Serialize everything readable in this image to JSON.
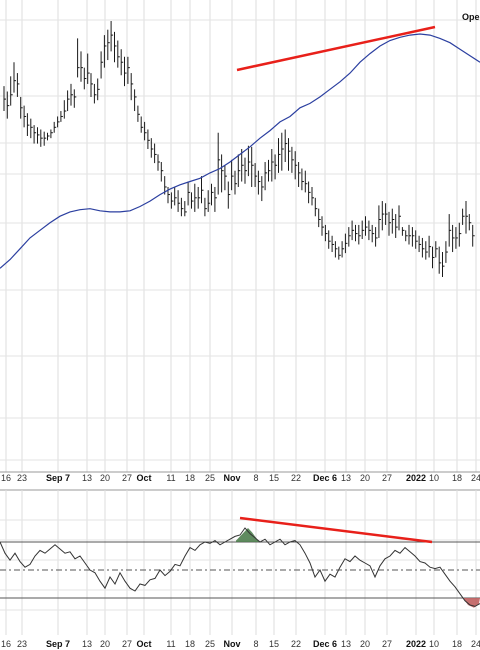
{
  "chart_data": [
    {
      "type": "ohlc-bar",
      "panel": "price",
      "header_text": "Ope",
      "x_tick_labels": [
        "16",
        "23",
        "Sep 7",
        "13",
        "20",
        "27",
        "Oct",
        "11",
        "18",
        "25",
        "Nov",
        "8",
        "15",
        "22",
        "Dec 6",
        "13",
        "20",
        "27",
        "2022",
        "10",
        "18",
        "24"
      ],
      "bold_tick_labels": [
        "Sep 7",
        "Oct",
        "Nov",
        "Dec 6",
        "2022"
      ],
      "grid": true,
      "price_bars": [
        [
          188,
          165,
          176
        ],
        [
          183,
          158,
          170
        ],
        [
          197,
          170,
          180
        ],
        [
          210,
          182,
          193
        ],
        [
          200,
          178,
          190
        ],
        [
          178,
          158,
          168
        ],
        [
          170,
          150,
          160
        ],
        [
          163,
          142,
          152
        ],
        [
          158,
          140,
          150
        ],
        [
          152,
          135,
          145
        ],
        [
          150,
          135,
          143
        ],
        [
          148,
          132,
          140
        ],
        [
          146,
          133,
          140
        ],
        [
          145,
          138,
          142
        ],
        [
          148,
          140,
          145
        ],
        [
          155,
          145,
          150
        ],
        [
          160,
          150,
          155
        ],
        [
          165,
          155,
          160
        ],
        [
          175,
          158,
          165
        ],
        [
          184,
          165,
          176
        ],
        [
          190,
          170,
          180
        ],
        [
          185,
          168,
          178
        ],
        [
          232,
          196,
          205
        ],
        [
          220,
          192,
          205
        ],
        [
          205,
          185,
          195
        ],
        [
          218,
          190,
          200
        ],
        [
          200,
          178,
          190
        ],
        [
          190,
          172,
          180
        ],
        [
          195,
          175,
          185
        ],
        [
          220,
          195,
          210
        ],
        [
          235,
          205,
          225
        ],
        [
          240,
          212,
          228
        ],
        [
          248,
          220,
          235
        ],
        [
          238,
          210,
          225
        ],
        [
          230,
          205,
          215
        ],
        [
          222,
          198,
          210
        ],
        [
          215,
          188,
          200
        ],
        [
          215,
          190,
          205
        ],
        [
          200,
          175,
          190
        ],
        [
          185,
          165,
          178
        ],
        [
          170,
          155,
          162
        ],
        [
          160,
          145,
          150
        ],
        [
          155,
          138,
          145
        ],
        [
          148,
          130,
          138
        ],
        [
          140,
          122,
          130
        ],
        [
          135,
          117,
          125
        ],
        [
          125,
          110,
          118
        ],
        [
          118,
          100,
          110
        ],
        [
          105,
          88,
          95
        ],
        [
          95,
          80,
          88
        ],
        [
          90,
          75,
          82
        ],
        [
          95,
          78,
          85
        ],
        [
          92,
          72,
          80
        ],
        [
          85,
          68,
          75
        ],
        [
          82,
          68,
          72
        ],
        [
          100,
          78,
          90
        ],
        [
          90,
          75,
          82
        ],
        [
          98,
          72,
          85
        ],
        [
          95,
          75,
          85
        ],
        [
          105,
          80,
          92
        ],
        [
          85,
          68,
          75
        ],
        [
          92,
          72,
          80
        ],
        [
          98,
          78,
          90
        ],
        [
          95,
          72,
          85
        ],
        [
          145,
          88,
          120
        ],
        [
          125,
          90,
          110
        ],
        [
          115,
          92,
          105
        ],
        [
          100,
          75,
          88
        ],
        [
          120,
          92,
          105
        ],
        [
          110,
          88,
          98
        ],
        [
          125,
          95,
          110
        ],
        [
          130,
          100,
          115
        ],
        [
          122,
          98,
          110
        ],
        [
          133,
          105,
          118
        ],
        [
          132,
          95,
          115
        ],
        [
          117,
          95,
          105
        ],
        [
          110,
          88,
          100
        ],
        [
          105,
          82,
          95
        ],
        [
          118,
          92,
          108
        ],
        [
          120,
          100,
          110
        ],
        [
          130,
          100,
          118
        ],
        [
          125,
          102,
          115
        ],
        [
          140,
          108,
          125
        ],
        [
          145,
          110,
          130
        ],
        [
          148,
          118,
          135
        ],
        [
          140,
          110,
          128
        ],
        [
          132,
          108,
          120
        ],
        [
          128,
          102,
          115
        ],
        [
          118,
          95,
          108
        ],
        [
          112,
          92,
          100
        ],
        [
          110,
          90,
          98
        ],
        [
          100,
          80,
          90
        ],
        [
          95,
          78,
          85
        ],
        [
          85,
          68,
          75
        ],
        [
          75,
          58,
          65
        ],
        [
          68,
          50,
          58
        ],
        [
          60,
          45,
          52
        ],
        [
          55,
          38,
          45
        ],
        [
          50,
          35,
          42
        ],
        [
          45,
          30,
          38
        ],
        [
          40,
          28,
          32
        ],
        [
          45,
          30,
          38
        ],
        [
          52,
          34,
          43
        ],
        [
          58,
          40,
          50
        ],
        [
          64,
          46,
          55
        ],
        [
          60,
          45,
          52
        ],
        [
          60,
          42,
          50
        ],
        [
          64,
          47,
          55
        ],
        [
          68,
          50,
          58
        ],
        [
          64,
          46,
          55
        ],
        [
          60,
          44,
          52
        ],
        [
          58,
          40,
          48
        ],
        [
          78,
          48,
          65
        ],
        [
          82,
          55,
          70
        ],
        [
          80,
          60,
          70
        ],
        [
          72,
          50,
          62
        ],
        [
          75,
          52,
          65
        ],
        [
          70,
          48,
          58
        ],
        [
          78,
          55,
          68
        ],
        [
          58,
          50,
          55
        ],
        [
          55,
          45,
          50
        ],
        [
          60,
          42,
          50
        ],
        [
          58,
          40,
          50
        ],
        [
          55,
          38,
          45
        ],
        [
          50,
          35,
          42
        ],
        [
          48,
          30,
          38
        ],
        [
          45,
          28,
          35
        ],
        [
          50,
          30,
          40
        ],
        [
          40,
          20,
          30
        ],
        [
          45,
          30,
          38
        ],
        [
          40,
          15,
          25
        ],
        [
          35,
          12,
          22
        ],
        [
          45,
          25,
          35
        ],
        [
          70,
          40,
          55
        ],
        [
          60,
          35,
          48
        ],
        [
          58,
          38,
          48
        ],
        [
          62,
          40,
          52
        ],
        [
          75,
          60,
          68
        ],
        [
          82,
          52,
          68
        ],
        [
          70,
          55,
          62
        ],
        [
          60,
          40,
          50
        ]
      ],
      "price_bar_range": [
        0,
        260
      ],
      "moving_average": [
        [
          0,
          20
        ],
        [
          10,
          28
        ],
        [
          20,
          38
        ],
        [
          30,
          48
        ],
        [
          40,
          55
        ],
        [
          50,
          62
        ],
        [
          60,
          68
        ],
        [
          70,
          72
        ],
        [
          80,
          74
        ],
        [
          90,
          75
        ],
        [
          100,
          73
        ],
        [
          110,
          72
        ],
        [
          120,
          72
        ],
        [
          130,
          73
        ],
        [
          140,
          77
        ],
        [
          150,
          82
        ],
        [
          160,
          88
        ],
        [
          170,
          93
        ],
        [
          180,
          97
        ],
        [
          190,
          100
        ],
        [
          200,
          103
        ],
        [
          210,
          108
        ],
        [
          220,
          112
        ],
        [
          230,
          118
        ],
        [
          240,
          125
        ],
        [
          250,
          132
        ],
        [
          260,
          140
        ],
        [
          270,
          147
        ],
        [
          280,
          155
        ],
        [
          290,
          160
        ],
        [
          300,
          168
        ],
        [
          310,
          172
        ],
        [
          320,
          178
        ],
        [
          330,
          185
        ],
        [
          340,
          192
        ],
        [
          350,
          200
        ],
        [
          360,
          210
        ],
        [
          370,
          218
        ],
        [
          380,
          225
        ],
        [
          390,
          230
        ],
        [
          400,
          233
        ],
        [
          410,
          235
        ],
        [
          420,
          236
        ],
        [
          430,
          235
        ],
        [
          440,
          232
        ],
        [
          450,
          228
        ],
        [
          460,
          222
        ],
        [
          470,
          216
        ],
        [
          480,
          210
        ]
      ],
      "moving_average_range": [
        0,
        260
      ],
      "trendline_color": "#e8201a",
      "ma_color": "#2b3fa0"
    },
    {
      "type": "line",
      "panel": "oscillator",
      "x_tick_labels": [
        "16",
        "23",
        "Sep 7",
        "13",
        "20",
        "27",
        "Oct",
        "11",
        "18",
        "25",
        "Nov",
        "8",
        "15",
        "22",
        "Dec 6",
        "13",
        "20",
        "27",
        "2022",
        "10",
        "18",
        "24"
      ],
      "ylim": [
        0,
        100
      ],
      "upper_level": 70,
      "mid_level": 50,
      "lower_level": 30,
      "values": [
        [
          0,
          70
        ],
        [
          5,
          62
        ],
        [
          10,
          57
        ],
        [
          15,
          62
        ],
        [
          20,
          56
        ],
        [
          25,
          52
        ],
        [
          30,
          54
        ],
        [
          35,
          60
        ],
        [
          40,
          64
        ],
        [
          45,
          62
        ],
        [
          50,
          65
        ],
        [
          55,
          68
        ],
        [
          60,
          65
        ],
        [
          65,
          62
        ],
        [
          70,
          63
        ],
        [
          75,
          58
        ],
        [
          80,
          60
        ],
        [
          85,
          55
        ],
        [
          90,
          50
        ],
        [
          95,
          48
        ],
        [
          100,
          42
        ],
        [
          105,
          37
        ],
        [
          110,
          45
        ],
        [
          115,
          40
        ],
        [
          120,
          48
        ],
        [
          125,
          42
        ],
        [
          130,
          37
        ],
        [
          135,
          35
        ],
        [
          140,
          40
        ],
        [
          145,
          39
        ],
        [
          150,
          43
        ],
        [
          155,
          44
        ],
        [
          160,
          50
        ],
        [
          165,
          46
        ],
        [
          170,
          49
        ],
        [
          175,
          54
        ],
        [
          180,
          53
        ],
        [
          185,
          60
        ],
        [
          190,
          66
        ],
        [
          195,
          64
        ],
        [
          200,
          68
        ],
        [
          205,
          70
        ],
        [
          210,
          69
        ],
        [
          215,
          71
        ],
        [
          220,
          68
        ],
        [
          225,
          70
        ],
        [
          230,
          72
        ],
        [
          235,
          74
        ],
        [
          240,
          75
        ],
        [
          245,
          80
        ],
        [
          250,
          76
        ],
        [
          255,
          73
        ],
        [
          260,
          70
        ],
        [
          265,
          72
        ],
        [
          270,
          68
        ],
        [
          275,
          70
        ],
        [
          280,
          72
        ],
        [
          285,
          68
        ],
        [
          290,
          70
        ],
        [
          295,
          71
        ],
        [
          300,
          68
        ],
        [
          305,
          62
        ],
        [
          310,
          55
        ],
        [
          315,
          45
        ],
        [
          320,
          50
        ],
        [
          325,
          42
        ],
        [
          330,
          47
        ],
        [
          335,
          45
        ],
        [
          340,
          52
        ],
        [
          345,
          58
        ],
        [
          350,
          56
        ],
        [
          355,
          60
        ],
        [
          360,
          57
        ],
        [
          365,
          55
        ],
        [
          370,
          53
        ],
        [
          375,
          45
        ],
        [
          380,
          53
        ],
        [
          385,
          58
        ],
        [
          390,
          60
        ],
        [
          395,
          64
        ],
        [
          400,
          62
        ],
        [
          405,
          66
        ],
        [
          410,
          63
        ],
        [
          415,
          60
        ],
        [
          420,
          56
        ],
        [
          425,
          55
        ],
        [
          430,
          52
        ],
        [
          435,
          51
        ],
        [
          440,
          52
        ],
        [
          445,
          47
        ],
        [
          450,
          42
        ],
        [
          455,
          38
        ],
        [
          460,
          33
        ],
        [
          465,
          28
        ],
        [
          470,
          25
        ],
        [
          475,
          24
        ],
        [
          480,
          26
        ]
      ],
      "overbought_peak": [
        [
          236,
          71
        ],
        [
          240,
          74
        ],
        [
          244,
          77
        ],
        [
          248,
          80
        ],
        [
          252,
          77
        ],
        [
          256,
          73
        ],
        [
          259,
          70
        ]
      ],
      "oversold_trough": [
        [
          463,
          30
        ],
        [
          468,
          25
        ],
        [
          474,
          23
        ],
        [
          479,
          26
        ],
        [
          480,
          30
        ]
      ],
      "trendline_color": "#e8201a",
      "line_color": "#333333",
      "fill_green": "#4e7e4e",
      "fill_red": "#c06060"
    }
  ]
}
